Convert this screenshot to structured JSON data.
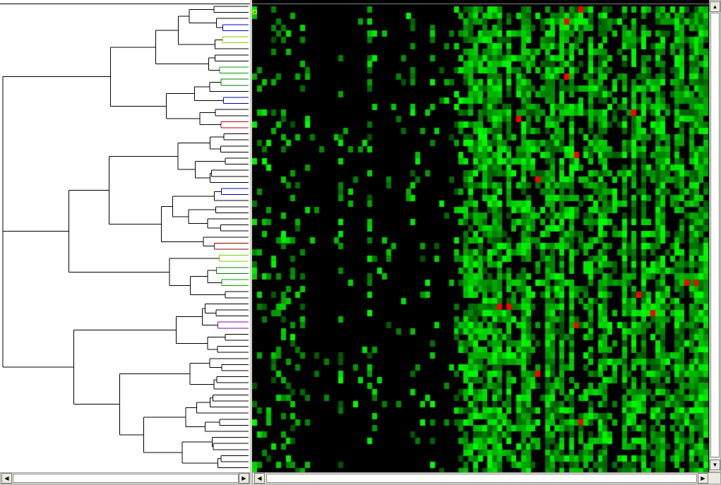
{
  "tree": {
    "leaf_count": 77,
    "highlight_colors": [
      "#c00000",
      "#7fd000",
      "#008000",
      "#0000c0",
      "#8000c0",
      "#8b0000",
      "#00a000"
    ],
    "line_color": "#000000"
  },
  "heatmap": {
    "rows": 77,
    "cols": 95,
    "low_color": "#000000",
    "high_color": "#00ff00",
    "outlier_color": "#ff0000",
    "selected_cell_color": "#ffff00"
  },
  "icons": {
    "left_arrow": "◀",
    "right_arrow": "▶",
    "up_arrow": "▲",
    "down_arrow": "▼"
  }
}
